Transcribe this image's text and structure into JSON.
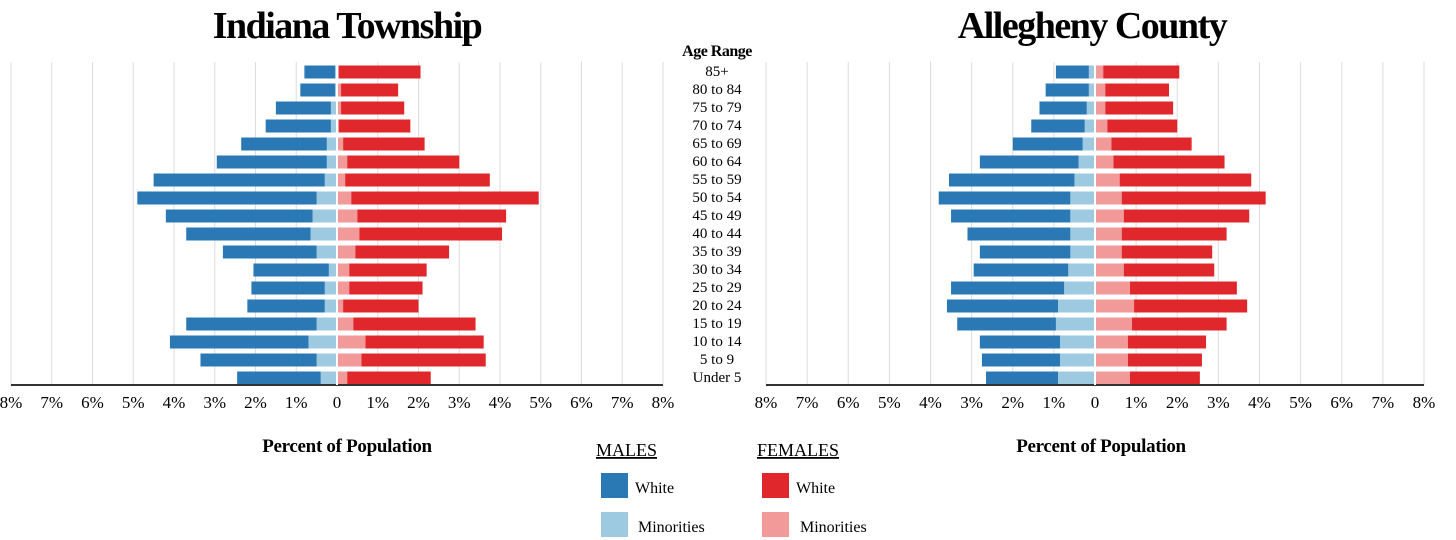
{
  "chart_data": [
    {
      "type": "bar",
      "orientation": "horizontal-population-pyramid",
      "title": "Indiana Township",
      "xlabel": "Percent of Population",
      "category_header": "Age Range",
      "categories": [
        "85+",
        "80 to 84",
        "75 to 79",
        "70 to 74",
        "65 to 69",
        "60 to 64",
        "55 to 59",
        "50 to 54",
        "45 to 49",
        "40 to 44",
        "35 to 39",
        "30 to 34",
        "25 to 29",
        "20 to 24",
        "15 to 19",
        "10 to 14",
        "5 to 9",
        "Under 5"
      ],
      "xlim": [
        -8,
        8
      ],
      "x_ticks": [
        "8%",
        "7%",
        "6%",
        "5%",
        "4%",
        "3%",
        "2%",
        "1%",
        "0",
        "1%",
        "2%",
        "3%",
        "4%",
        "5%",
        "6%",
        "7%",
        "8%"
      ],
      "grid": true,
      "series": [
        {
          "name": "MALES White",
          "values": [
            0.75,
            0.85,
            1.35,
            1.6,
            2.1,
            2.7,
            4.2,
            4.4,
            3.6,
            3.05,
            2.3,
            1.85,
            1.8,
            1.9,
            3.2,
            3.4,
            2.85,
            2.05
          ]
        },
        {
          "name": "MALES Minorities",
          "values": [
            0.05,
            0.05,
            0.15,
            0.15,
            0.25,
            0.25,
            0.3,
            0.5,
            0.6,
            0.65,
            0.5,
            0.2,
            0.3,
            0.3,
            0.5,
            0.7,
            0.5,
            0.4
          ]
        },
        {
          "name": "FEMALES White",
          "values": [
            2.0,
            1.4,
            1.55,
            1.75,
            2.0,
            2.75,
            3.55,
            4.6,
            3.65,
            3.5,
            2.3,
            1.9,
            1.8,
            1.85,
            3.0,
            2.9,
            3.05,
            2.05
          ]
        },
        {
          "name": "FEMALES Minorities",
          "values": [
            0.05,
            0.1,
            0.1,
            0.05,
            0.15,
            0.25,
            0.2,
            0.35,
            0.5,
            0.55,
            0.45,
            0.3,
            0.3,
            0.15,
            0.4,
            0.7,
            0.6,
            0.25
          ]
        }
      ]
    },
    {
      "type": "bar",
      "orientation": "horizontal-population-pyramid",
      "title": "Allegheny County",
      "xlabel": "Percent of Population",
      "categories": [
        "85+",
        "80 to 84",
        "75 to 79",
        "70 to 74",
        "65 to 69",
        "60 to 64",
        "55 to 59",
        "50 to 54",
        "45 to 49",
        "40 to 44",
        "35 to 39",
        "30 to 34",
        "25 to 29",
        "20 to 24",
        "15 to 19",
        "10 to 14",
        "5 to 9",
        "Under 5"
      ],
      "xlim": [
        -8,
        8
      ],
      "x_ticks": [
        "8%",
        "7%",
        "6%",
        "5%",
        "4%",
        "3%",
        "2%",
        "1%",
        "0",
        "1%",
        "2%",
        "3%",
        "4%",
        "5%",
        "6%",
        "7%",
        "8%"
      ],
      "grid": true,
      "series": [
        {
          "name": "MALES White",
          "values": [
            0.8,
            1.05,
            1.15,
            1.3,
            1.7,
            2.4,
            3.05,
            3.2,
            2.9,
            2.5,
            2.2,
            2.3,
            2.75,
            2.7,
            2.4,
            1.95,
            1.9,
            1.75
          ]
        },
        {
          "name": "MALES Minorities",
          "values": [
            0.15,
            0.15,
            0.2,
            0.25,
            0.3,
            0.4,
            0.5,
            0.6,
            0.6,
            0.6,
            0.6,
            0.65,
            0.75,
            0.9,
            0.95,
            0.85,
            0.85,
            0.9
          ]
        },
        {
          "name": "FEMALES White",
          "values": [
            1.85,
            1.55,
            1.65,
            1.7,
            1.95,
            2.7,
            3.2,
            3.5,
            3.05,
            2.55,
            2.2,
            2.2,
            2.6,
            2.75,
            2.3,
            1.9,
            1.8,
            1.7
          ]
        },
        {
          "name": "FEMALES Minorities",
          "values": [
            0.2,
            0.25,
            0.25,
            0.3,
            0.4,
            0.45,
            0.6,
            0.65,
            0.7,
            0.65,
            0.65,
            0.7,
            0.85,
            0.95,
            0.9,
            0.8,
            0.8,
            0.85
          ]
        }
      ]
    }
  ],
  "legend": {
    "males_header": "MALES",
    "females_header": "FEMALES",
    "white_label": "White",
    "minorities_label": "Minorities"
  },
  "colors": {
    "male_white": "#2a78b4",
    "male_minorities": "#9ecae1",
    "female_white": "#e0282c",
    "female_minorities": "#f29a9a",
    "grid": "#dddddd",
    "axis": "#333333"
  }
}
